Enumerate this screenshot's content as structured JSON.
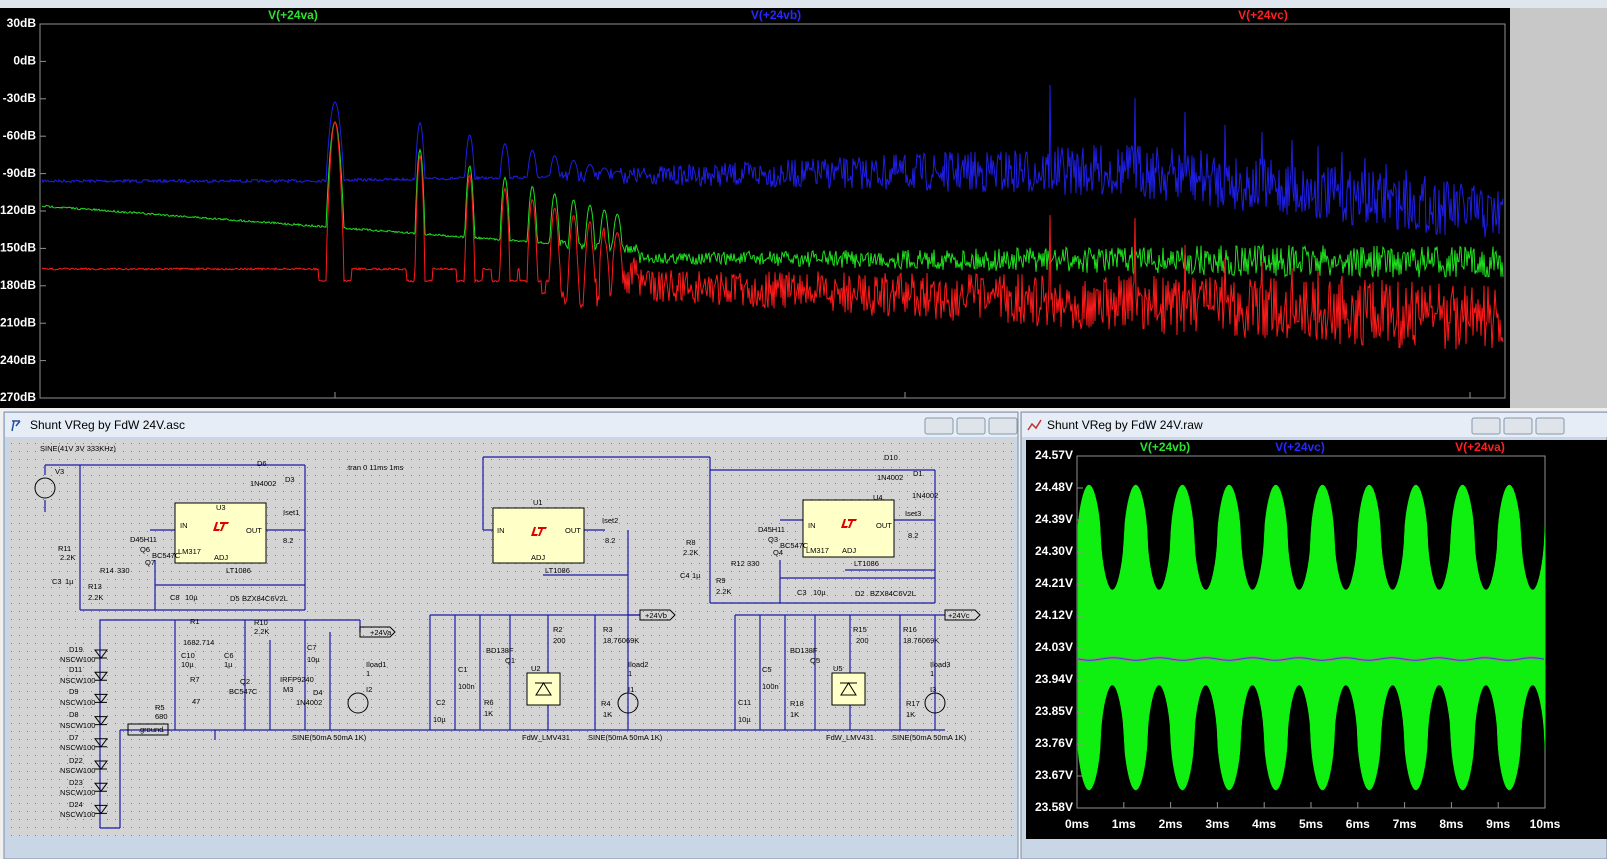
{
  "fft_plot": {
    "traces": [
      "V(+24va)",
      "V(+24vb)",
      "V(+24vc)"
    ],
    "y_ticks": [
      "30dB",
      "0dB",
      "-30dB",
      "-60dB",
      "-90dB",
      "120dB",
      "150dB",
      "180dB",
      "210dB",
      "240dB",
      "270dB"
    ]
  },
  "schematic_window": {
    "title": "Shunt VReg by FdW 24V.asc",
    "labels": [
      "SINE(41V 3V 333KHz)",
      "V3",
      "D6",
      "1N4002",
      "D3",
      ".tran 0 11ms 1ms",
      "U3",
      "IN",
      "OUT",
      "LM317",
      "ADJ",
      "LT1086",
      "Iset1",
      "8.2",
      "D45H11",
      "Q6",
      "Q7",
      "BC547C",
      "R11",
      "2.2K",
      "R14",
      "330",
      "C3",
      "1µ",
      "R13",
      "2.2K",
      "C8",
      "10µ",
      "D5",
      "BZX84C6V2L",
      "R1",
      "1682.714",
      "R10",
      "2.2K",
      "C10",
      "10µ",
      "C6",
      "1µ",
      "+24Va",
      "C7",
      "10µ",
      "Iload1",
      "1",
      "I2",
      "R7",
      "47",
      "Q2",
      "BC547C",
      "IRFP9240",
      "M3",
      "D4",
      "1N4002",
      "R5",
      "680",
      "ground",
      "SINE(50mA 50mA 1K)",
      "D19",
      "NSCW100",
      "D11",
      "NSCW100",
      "D9",
      "NSCW100",
      "D8",
      "NSCW100",
      "D7",
      "NSCW100",
      "D22",
      "NSCW100",
      "D23",
      "NSCW100",
      "D24",
      "NSCW100",
      "U1",
      "IN",
      "OUT",
      "ADJ",
      "LT1086",
      "Iset2",
      "8.2",
      "+24Vb",
      "R2",
      "200",
      "R3",
      "18.76069K",
      "BD138F",
      "Q1",
      "U2",
      "C1",
      "100n",
      "Iload2",
      "1",
      "I1",
      "C2",
      "10µ",
      "R6",
      "1K",
      "R4",
      "1K",
      "FdW_LMV431",
      "SINE(50mA 50mA 1K)",
      "D10",
      "1N4002",
      "D1",
      "1N4002",
      "U4",
      "IN",
      "OUT",
      "LM317",
      "ADJ",
      "LT1086",
      "Iset3",
      "8.2",
      "D45H11",
      "Q3",
      "Q4",
      "BC547C",
      "R8",
      "2.2K",
      "R12",
      "330",
      "C4",
      "1µ",
      "R9",
      "2.2K",
      "C3",
      "10µ",
      "D2",
      "BZX84C6V2L",
      "+24Vc",
      "R15",
      "200",
      "R16",
      "18.76069K",
      "BD138F",
      "Q5",
      "U5",
      "C5",
      "100n",
      "Iload3",
      "1",
      "I3",
      "C11",
      "10µ",
      "R18",
      "1K",
      "R17",
      "1K",
      "FdW_LMV431",
      "SINE(50mA 50mA 1K)"
    ]
  },
  "waveform_window": {
    "title": "Shunt VReg by FdW 24V.raw",
    "traces": [
      "V(+24vb)",
      "V(+24vc)",
      "V(+24va)"
    ],
    "y_ticks": [
      "24.57V",
      "24.48V",
      "24.39V",
      "24.30V",
      "24.21V",
      "24.12V",
      "24.03V",
      "23.94V",
      "23.85V",
      "23.76V",
      "23.67V",
      "23.58V"
    ],
    "x_ticks": [
      "0ms",
      "1ms",
      "2ms",
      "3ms",
      "4ms",
      "5ms",
      "6ms",
      "7ms",
      "8ms",
      "9ms",
      "10ms"
    ]
  }
}
